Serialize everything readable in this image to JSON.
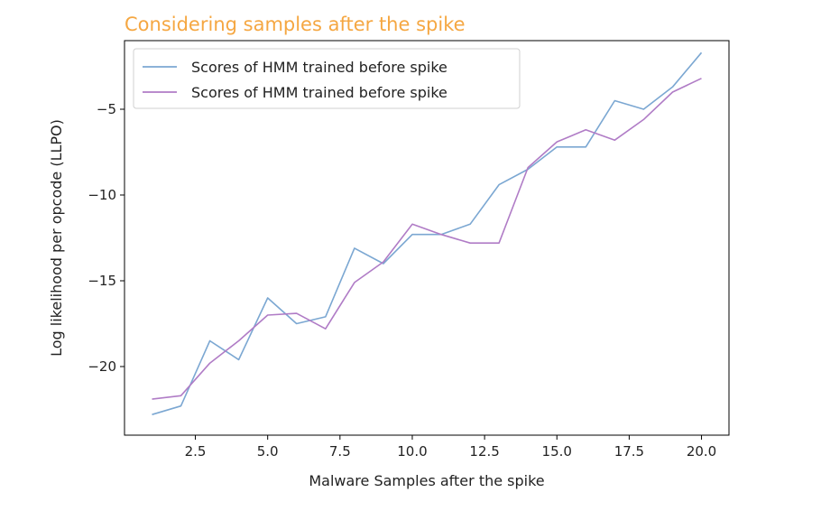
{
  "chart_data": {
    "type": "line",
    "title": "Considering samples after the spike",
    "xlabel": "Malware Samples after the spike",
    "ylabel": "Log likelihood per opcode (LLPO)",
    "xlim": [
      0.05,
      20.95
    ],
    "ylim": [
      -24.0,
      -1.0
    ],
    "xticks": [
      2.5,
      5.0,
      7.5,
      10.0,
      12.5,
      15.0,
      17.5,
      20.0
    ],
    "xtick_labels": [
      "2.5",
      "5.0",
      "7.5",
      "10.0",
      "12.5",
      "15.0",
      "17.5",
      "20.0"
    ],
    "yticks": [
      -20,
      -15,
      -10,
      -5
    ],
    "ytick_labels": [
      "−20",
      "−15",
      "−10",
      "−5"
    ],
    "grid": false,
    "legend_position": "top-left",
    "x": [
      1,
      2,
      3,
      4,
      5,
      6,
      7,
      8,
      9,
      10,
      11,
      12,
      13,
      14,
      15,
      16,
      17,
      18,
      19,
      20
    ],
    "series": [
      {
        "name": "Scores of HMM trained before spike",
        "color": "#7ba7d2",
        "values": [
          -22.8,
          -22.3,
          -18.5,
          -19.6,
          -16.0,
          -17.5,
          -17.1,
          -13.1,
          -14.0,
          -12.3,
          -12.3,
          -11.7,
          -9.4,
          -8.5,
          -7.2,
          -7.2,
          -4.5,
          -5.0,
          -3.7,
          -1.7
        ]
      },
      {
        "name": "Scores of HMM trained before spike",
        "color": "#b07cc6",
        "values": [
          -21.9,
          -21.7,
          -19.8,
          -18.5,
          -17.0,
          -16.9,
          -17.8,
          -15.1,
          -13.9,
          -11.7,
          -12.3,
          -12.8,
          -12.8,
          -8.4,
          -6.9,
          -6.2,
          -6.8,
          -5.6,
          -4.0,
          -3.2
        ]
      }
    ]
  }
}
